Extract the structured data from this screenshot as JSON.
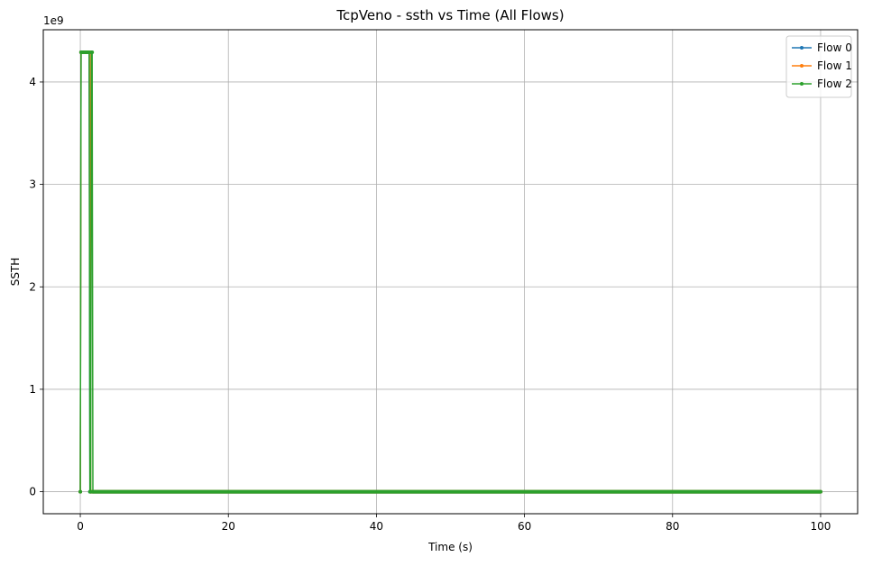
{
  "chart_data": {
    "type": "line",
    "title": "TcpVeno - ssth vs Time (All Flows)",
    "xlabel": "Time (s)",
    "ylabel": "SSTH",
    "y_offset_label": "1e9",
    "xlim": [
      -5,
      105
    ],
    "ylim": [
      -0.215,
      4.51
    ],
    "y_scale_factor": 1000000000,
    "xticks": [
      0,
      20,
      40,
      60,
      80,
      100
    ],
    "yticks": [
      0,
      1,
      2,
      3,
      4
    ],
    "xtick_labels": [
      "0",
      "20",
      "40",
      "60",
      "80",
      "100"
    ],
    "ytick_labels": [
      "0",
      "1",
      "2",
      "3",
      "4"
    ],
    "grid": true,
    "legend_position": "top-right",
    "series": [
      {
        "name": "Flow 0",
        "color": "#1f77b4",
        "x": [
          0.0,
          0.1,
          0.2,
          0.4,
          0.6,
          0.8,
          1.0,
          1.2,
          1.3,
          1.4,
          1.5,
          1.6,
          1.7
        ],
        "y": [
          0.0,
          4.29,
          4.29,
          4.29,
          4.29,
          4.29,
          4.29,
          4.29,
          0.0,
          0.0,
          0.0,
          0.0,
          0.0
        ],
        "tail": {
          "x_start": 1.7,
          "x_end": 100,
          "y": 0.0
        }
      },
      {
        "name": "Flow 1",
        "color": "#ff7f0e",
        "x": [
          0.0,
          0.1,
          0.3,
          0.5,
          0.7,
          0.9,
          1.1,
          1.3,
          1.4,
          1.5,
          1.6,
          1.7
        ],
        "y": [
          0.0,
          4.29,
          4.29,
          4.29,
          4.29,
          4.29,
          4.29,
          4.29,
          0.0,
          0.0,
          0.0,
          0.0
        ],
        "tail": {
          "x_start": 1.7,
          "x_end": 100,
          "y": 0.0
        }
      },
      {
        "name": "Flow 2",
        "color": "#2ca02c",
        "x": [
          0.0,
          0.1,
          0.2,
          0.4,
          0.6,
          0.8,
          1.0,
          1.2,
          1.3,
          1.4,
          1.5,
          1.6,
          1.7
        ],
        "y": [
          0.0,
          4.29,
          4.29,
          4.29,
          4.29,
          4.29,
          4.29,
          4.29,
          0.0,
          0.0,
          4.29,
          4.29,
          0.0
        ],
        "tail": {
          "x_start": 1.7,
          "x_end": 100,
          "y": 0.0
        }
      }
    ]
  }
}
